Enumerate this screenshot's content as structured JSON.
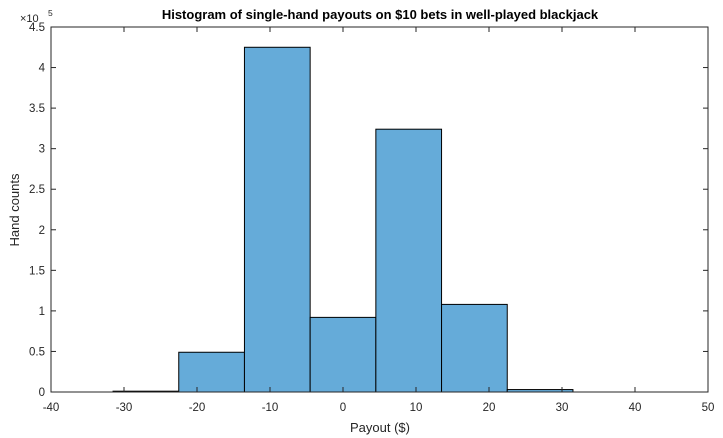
{
  "chart_data": {
    "type": "bar",
    "title": "Histogram of single-hand payouts on $10 bets in well-played blackjack",
    "xlabel": "Payout ($)",
    "ylabel": "Hand counts",
    "y_exponent_base": "×10",
    "y_exponent_power": "5",
    "xlim": [
      -40,
      50
    ],
    "ylim": [
      0,
      4.5
    ],
    "y_scale": 100000,
    "x_ticks": [
      -40,
      -30,
      -20,
      -10,
      0,
      10,
      20,
      30,
      40,
      50
    ],
    "y_ticks": [
      0,
      0.5,
      1,
      1.5,
      2,
      2.5,
      3,
      3.5,
      4,
      4.5
    ],
    "bin_edges": [
      -31.5,
      -22.5,
      -13.5,
      -4.5,
      4.5,
      13.5,
      22.5,
      31.5
    ],
    "values": [
      1000,
      49000,
      425000,
      92000,
      324000,
      108000,
      3000
    ],
    "bar_color": "#65abd9",
    "bar_edge_color": "#000000",
    "grid": false,
    "legend": false
  }
}
